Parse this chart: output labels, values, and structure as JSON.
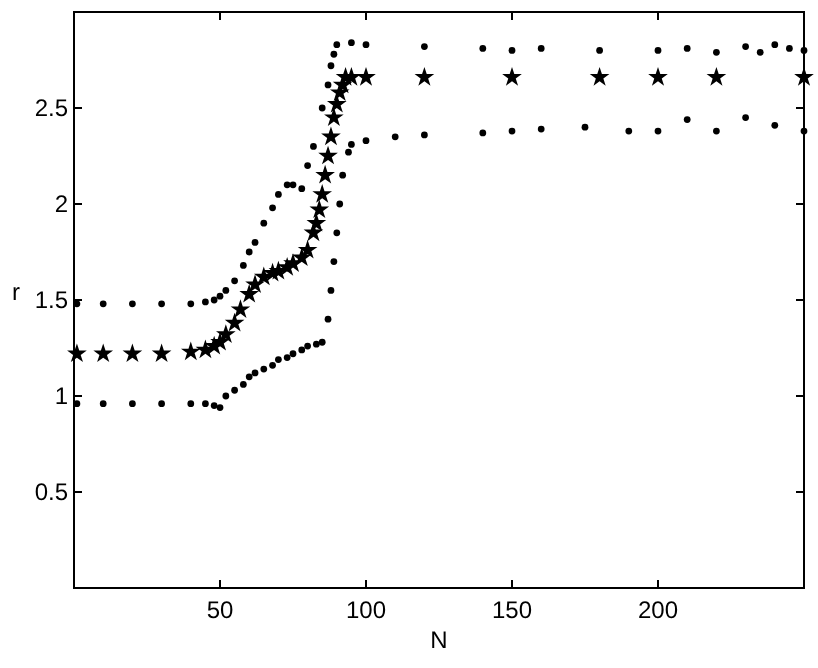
{
  "chart_data": {
    "type": "scatter",
    "xlabel": "N",
    "ylabel": "r",
    "xlim": [
      0,
      250
    ],
    "ylim": [
      0,
      3
    ],
    "xticks": [
      50,
      100,
      150,
      200
    ],
    "yticks": [
      0.5,
      1,
      1.5,
      2,
      2.5
    ],
    "grid": false,
    "series": [
      {
        "color": "#000000",
        "marker": "circle",
        "x": [
          1,
          10,
          20,
          30,
          40,
          45,
          48,
          50,
          52,
          55,
          58,
          60,
          62,
          65,
          68,
          70,
          73,
          75,
          78,
          80,
          82,
          85,
          87,
          88,
          89,
          90,
          95,
          100,
          120,
          140,
          150,
          160,
          180,
          200,
          210,
          220,
          230,
          235,
          240,
          245,
          250
        ],
        "values": [
          1.48,
          1.48,
          1.48,
          1.48,
          1.48,
          1.49,
          1.5,
          1.52,
          1.55,
          1.6,
          1.68,
          1.75,
          1.8,
          1.9,
          1.98,
          2.05,
          2.1,
          2.1,
          2.08,
          2.2,
          2.3,
          2.5,
          2.62,
          2.72,
          2.78,
          2.83,
          2.84,
          2.83,
          2.82,
          2.81,
          2.8,
          2.81,
          2.8,
          2.8,
          2.81,
          2.79,
          2.82,
          2.79,
          2.83,
          2.81,
          2.8
        ]
      },
      {
        "color": "#000000",
        "marker": "star",
        "x": [
          1,
          10,
          20,
          30,
          40,
          45,
          48,
          50,
          52,
          55,
          57,
          60,
          62,
          65,
          68,
          70,
          73,
          75,
          78,
          80,
          82,
          83,
          84,
          85,
          86,
          87,
          88,
          89,
          90,
          91,
          92,
          93,
          95,
          100,
          120,
          150,
          180,
          200,
          220,
          250
        ],
        "values": [
          1.22,
          1.22,
          1.22,
          1.22,
          1.23,
          1.24,
          1.26,
          1.28,
          1.32,
          1.38,
          1.45,
          1.53,
          1.58,
          1.62,
          1.64,
          1.65,
          1.67,
          1.69,
          1.72,
          1.76,
          1.85,
          1.9,
          1.97,
          2.05,
          2.15,
          2.25,
          2.35,
          2.45,
          2.52,
          2.58,
          2.62,
          2.66,
          2.66,
          2.66,
          2.66,
          2.66,
          2.66,
          2.66,
          2.66,
          2.66
        ]
      },
      {
        "color": "#000000",
        "marker": "circle",
        "x": [
          1,
          10,
          20,
          30,
          40,
          45,
          48,
          50,
          52,
          55,
          58,
          60,
          62,
          65,
          68,
          70,
          73,
          75,
          78,
          80,
          83,
          85,
          87,
          88,
          89,
          90,
          91,
          92,
          94,
          95,
          100,
          110,
          120,
          140,
          150,
          160,
          175,
          190,
          200,
          210,
          220,
          230,
          240,
          250
        ],
        "values": [
          0.96,
          0.96,
          0.96,
          0.96,
          0.96,
          0.96,
          0.95,
          0.94,
          1.0,
          1.03,
          1.06,
          1.1,
          1.12,
          1.14,
          1.16,
          1.19,
          1.2,
          1.22,
          1.24,
          1.26,
          1.27,
          1.28,
          1.4,
          1.55,
          1.7,
          1.85,
          2.0,
          2.15,
          2.27,
          2.31,
          2.33,
          2.35,
          2.36,
          2.37,
          2.38,
          2.39,
          2.4,
          2.38,
          2.38,
          2.44,
          2.38,
          2.45,
          2.41,
          2.38
        ]
      }
    ]
  }
}
